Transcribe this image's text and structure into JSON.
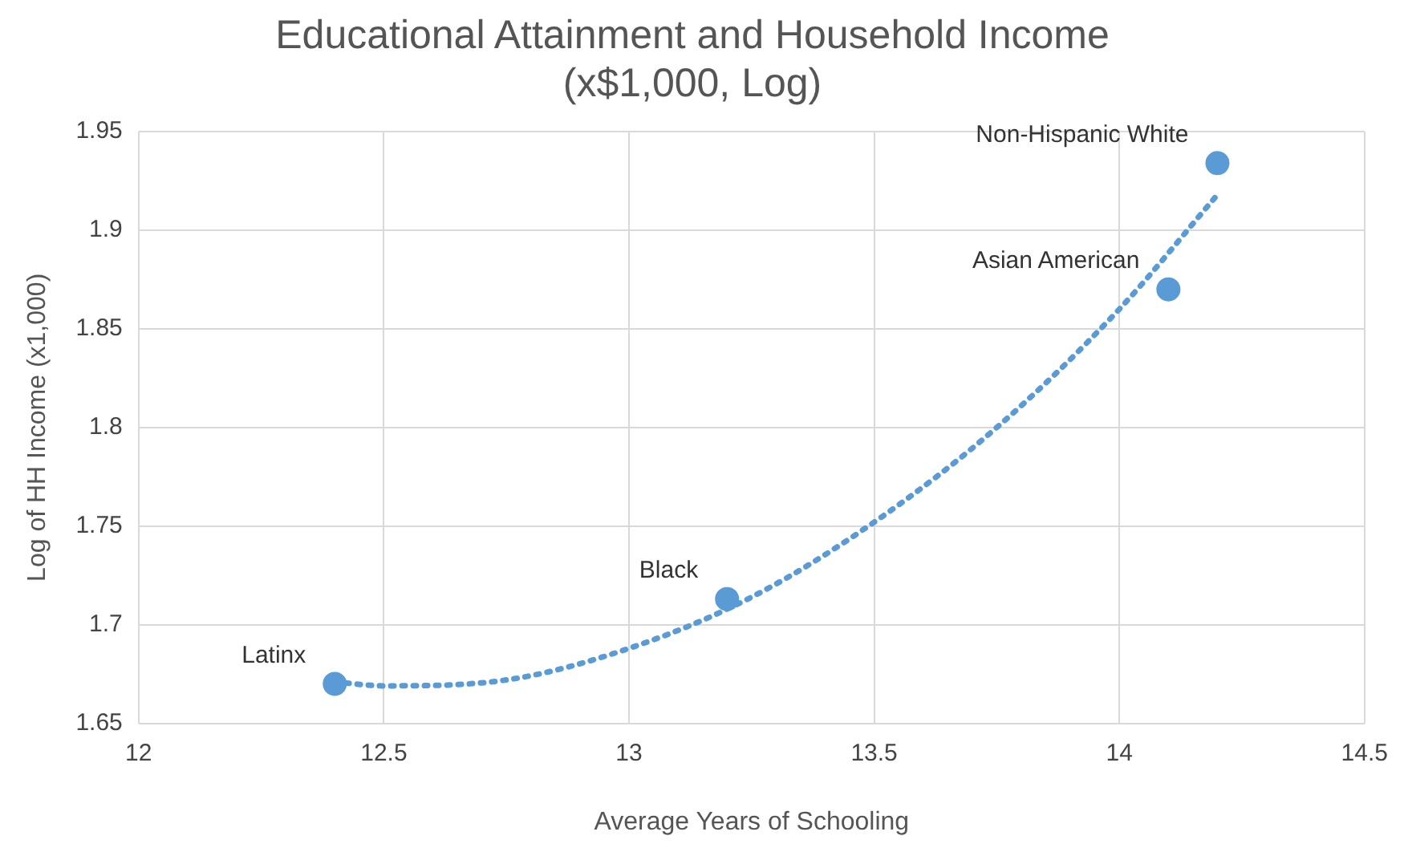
{
  "chart_data": {
    "type": "scatter",
    "title": "Educational Attainment and Household Income\n(x$1,000, Log)",
    "xlabel": "Average Years of Schooling",
    "ylabel": "Log of HH Income (x1,000)",
    "x": [
      12.4,
      13.2,
      14.1,
      14.2
    ],
    "series": [
      {
        "type": "scatter",
        "color": "#5b9bd5",
        "values": [
          1.67,
          1.713,
          1.87,
          1.934
        ],
        "marker": "circle"
      },
      {
        "type": "line",
        "color": "#5b9bd5",
        "x": [
          12.4,
          12.5,
          12.75,
          13.0,
          13.25,
          13.5,
          13.75,
          14.0,
          14.2
        ],
        "values": [
          1.671,
          1.669,
          1.672,
          1.688,
          1.714,
          1.752,
          1.8,
          1.86,
          1.918
        ],
        "line_style": "dotted",
        "marker": "none"
      }
    ],
    "annotations": [
      {
        "text": "Latinx",
        "x": 12.4,
        "y": 1.67
      },
      {
        "text": "Black",
        "x": 13.2,
        "y": 1.713
      },
      {
        "text": "Asian American",
        "x": 14.1,
        "y": 1.87
      },
      {
        "text": "Non-Hispanic White",
        "x": 14.2,
        "y": 1.934
      }
    ],
    "xlim": [
      12,
      14.5
    ],
    "xticks": [
      12,
      12.5,
      13,
      13.5,
      14,
      14.5
    ],
    "ylim": [
      1.65,
      1.95
    ],
    "yticks": [
      1.65,
      1.7,
      1.75,
      1.8,
      1.85,
      1.9,
      1.95
    ],
    "grid": true,
    "legend": false
  }
}
